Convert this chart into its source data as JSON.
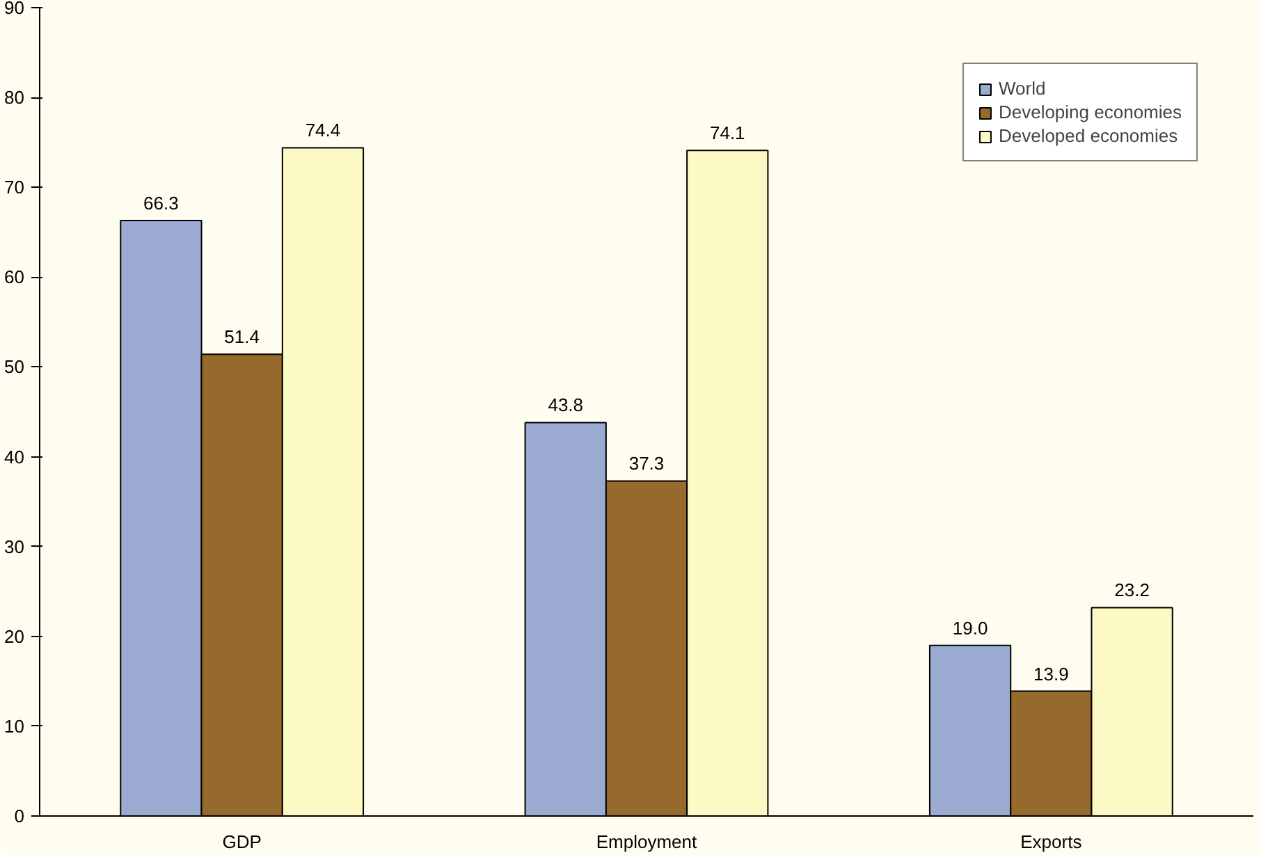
{
  "chart_data": {
    "type": "bar",
    "categories": [
      "GDP",
      "Employment",
      "Exports"
    ],
    "series": [
      {
        "name": "World",
        "color": "#9aaad0",
        "values": [
          66.3,
          43.8,
          19.0
        ]
      },
      {
        "name": "Developing economies",
        "color": "#956a2c",
        "values": [
          51.4,
          37.3,
          13.9
        ]
      },
      {
        "name": "Developed economies",
        "color": "#fdf9c4",
        "values": [
          74.4,
          74.1,
          23.2
        ]
      }
    ],
    "value_labels": [
      [
        "66.3",
        "43.8",
        "19.0"
      ],
      [
        "51.4",
        "37.3",
        "13.9"
      ],
      [
        "74.4",
        "74.1",
        "23.2"
      ]
    ],
    "ylim": [
      0,
      90
    ],
    "yticks": [
      0,
      10,
      20,
      30,
      40,
      50,
      60,
      70,
      80,
      90
    ],
    "grid": false,
    "legend": "top right"
  }
}
